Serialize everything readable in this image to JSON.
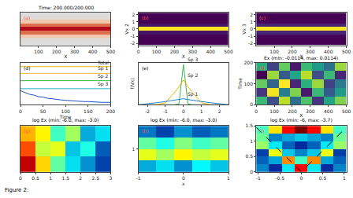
{
  "chart_data": [
    {
      "type": "heatmap",
      "label": "(a)",
      "title": "Time: 200.000/200.000",
      "xlabel": "X",
      "x": [
        50,
        150,
        250,
        350,
        450
      ],
      "y": [
        -2,
        -1.5,
        -1,
        -0.5,
        0,
        0.5,
        1,
        1.5,
        2
      ],
      "z": [
        [
          0,
          0,
          0,
          0,
          0
        ],
        [
          0.02,
          0.02,
          0.02,
          0.02,
          0.02
        ],
        [
          0.15,
          0.15,
          0.15,
          0.15,
          0.15
        ],
        [
          0.6,
          0.6,
          0.6,
          0.6,
          0.6
        ],
        [
          1,
          1,
          1,
          1,
          1
        ],
        [
          0.6,
          0.6,
          0.6,
          0.6,
          0.6
        ],
        [
          0.15,
          0.15,
          0.15,
          0.15,
          0.15
        ],
        [
          0.02,
          0.02,
          0.02,
          0.02,
          0.02
        ],
        [
          0,
          0,
          0,
          0,
          0
        ]
      ],
      "zlim": [
        0,
        1
      ],
      "xlim": [
        0,
        500
      ],
      "ylim": [
        -2.25,
        2.25
      ],
      "xticks": [
        100,
        200,
        300,
        400,
        500
      ],
      "yticks": [],
      "tick_labels": "x"
    },
    {
      "type": "heatmap",
      "label": "(b)",
      "xlabel": "X",
      "ylabel": "Vx 2",
      "x": [
        50,
        150,
        250,
        350,
        450
      ],
      "y": [
        -2,
        -1.5,
        -1,
        -0.5,
        0,
        0.5,
        1,
        1.5,
        2
      ],
      "z": [
        [
          0,
          0,
          0,
          0,
          0
        ],
        [
          0,
          0,
          0,
          0,
          0
        ],
        [
          0,
          0,
          0,
          0,
          0
        ],
        [
          0.05,
          0.05,
          0.05,
          0.05,
          0.05
        ],
        [
          1,
          1,
          1,
          1,
          1
        ],
        [
          0.05,
          0.05,
          0.05,
          0.05,
          0.05
        ],
        [
          0,
          0,
          0,
          0,
          0
        ],
        [
          0,
          0,
          0,
          0,
          0
        ],
        [
          0,
          0,
          0,
          0,
          0
        ]
      ],
      "zlim": [
        0,
        1
      ],
      "xlim": [
        0,
        500
      ],
      "ylim": [
        -2.25,
        2.25
      ],
      "xticks": [
        0,
        100,
        200,
        300,
        400,
        500
      ],
      "yticks": [
        -2,
        -1,
        0,
        1,
        2
      ]
    },
    {
      "type": "heatmap",
      "label": "(c)",
      "xlabel": "X",
      "ylabel": "Vx 3",
      "x": [
        50,
        150,
        250,
        350,
        450
      ],
      "y": [
        -2,
        -1.5,
        -1,
        -0.5,
        0,
        0.5,
        1,
        1.5,
        2
      ],
      "z": [
        [
          0,
          0,
          0,
          0,
          0
        ],
        [
          0,
          0,
          0,
          0,
          0
        ],
        [
          0.01,
          0.01,
          0.01,
          0.01,
          0.01
        ],
        [
          0.1,
          0.1,
          0.1,
          0.1,
          0.1
        ],
        [
          1,
          1,
          1,
          1,
          1
        ],
        [
          0.1,
          0.1,
          0.1,
          0.1,
          0.1
        ],
        [
          0.01,
          0.01,
          0.01,
          0.01,
          0.01
        ],
        [
          0,
          0,
          0,
          0,
          0
        ],
        [
          0,
          0,
          0,
          0,
          0
        ]
      ],
      "zlim": [
        0,
        1
      ],
      "xlim": [
        0,
        500
      ],
      "ylim": [
        -2.25,
        2.25
      ],
      "xticks": [
        100,
        200,
        300,
        400,
        500
      ],
      "yticks": [
        -2,
        -1,
        0,
        1,
        2
      ]
    },
    {
      "type": "line",
      "label": "(d)",
      "xlabel": "Time",
      "x": [
        0,
        10,
        20,
        30,
        40,
        50,
        60,
        70,
        80,
        90,
        100,
        110,
        120,
        130,
        140,
        150,
        160,
        170,
        180,
        190,
        200
      ],
      "series": [
        {
          "name": "Total",
          "color": "#e8b400",
          "values": [
            0.95,
            0.95,
            0.95,
            0.95,
            0.95,
            0.95,
            0.95,
            0.95,
            0.95,
            0.95,
            0.95,
            0.95,
            0.95,
            0.95,
            0.95,
            0.95,
            0.95,
            0.95,
            0.95,
            0.95,
            0.95
          ]
        },
        {
          "name": "Sp 1",
          "color": "#f0c040",
          "values": [
            0.78,
            0.78,
            0.78,
            0.78,
            0.78,
            0.78,
            0.78,
            0.78,
            0.78,
            0.78,
            0.78,
            0.78,
            0.78,
            0.78,
            0.78,
            0.78,
            0.78,
            0.78,
            0.78,
            0.78,
            0.78
          ]
        },
        {
          "name": "Sp 2",
          "color": "#3cb44b",
          "values": [
            0.6,
            0.6,
            0.6,
            0.6,
            0.6,
            0.6,
            0.6,
            0.6,
            0.6,
            0.6,
            0.6,
            0.6,
            0.6,
            0.6,
            0.6,
            0.6,
            0.6,
            0.6,
            0.6,
            0.6,
            0.6
          ]
        },
        {
          "name": "Sp 3",
          "color": "#20b0c0",
          "values": [
            0.4,
            0.4,
            0.4,
            0.4,
            0.4,
            0.4,
            0.4,
            0.4,
            0.4,
            0.4,
            0.4,
            0.4,
            0.4,
            0.4,
            0.4,
            0.4,
            0.4,
            0.4,
            0.4,
            0.4,
            0.4
          ]
        },
        {
          "color": "#2050c0",
          "values": [
            0.35,
            0.3,
            0.26,
            0.24,
            0.2,
            0.19,
            0.16,
            0.15,
            0.13,
            0.12,
            0.11,
            0.1,
            0.09,
            0.09,
            0.08,
            0.08,
            0.07,
            0.07,
            0.06,
            0.06,
            0.06
          ]
        }
      ],
      "xlim": [
        0,
        200
      ],
      "ylim": [
        0,
        1.05
      ],
      "xticks": [
        0,
        50,
        100,
        150,
        200
      ],
      "yticks": [],
      "tick_labels": "x"
    },
    {
      "type": "line",
      "label": "(e)",
      "ylabel": "f(Vx)",
      "x": [
        -2.5,
        -2,
        -1.5,
        -1,
        -0.5,
        -0.25,
        0,
        0.25,
        0.5,
        1,
        1.5,
        2,
        2.5
      ],
      "series": [
        {
          "name": "Sp 3",
          "color": "#3cb44b",
          "values": [
            0,
            0,
            0,
            0,
            0,
            0.02,
            1,
            0.02,
            0,
            0,
            0,
            0,
            0
          ]
        },
        {
          "name": "Sp 2",
          "color": "#f0b400",
          "values": [
            0,
            0,
            0,
            0.05,
            0.3,
            0.45,
            0.62,
            0.45,
            0.3,
            0.05,
            0,
            0,
            0
          ]
        },
        {
          "name": "Sp 1",
          "color": "#2080d0",
          "values": [
            0,
            0.02,
            0.05,
            0.08,
            0.11,
            0.13,
            0.15,
            0.13,
            0.11,
            0.08,
            0.05,
            0.02,
            0
          ]
        }
      ],
      "xlim": [
        -2.5,
        2.5
      ],
      "ylim": [
        0,
        1.05
      ],
      "xticks": [
        -2,
        -1,
        0,
        1,
        2
      ],
      "yticks": [],
      "tick_labels": "x"
    },
    {
      "type": "heatmap",
      "label": "(f)",
      "title": "Ex (min: -0.0114, max: 0.0114)",
      "xlabel": "X",
      "ylabel": "Time",
      "x": [
        31.25,
        93.75,
        156.25,
        218.75,
        281.25,
        343.75,
        406.25,
        468.75
      ],
      "y": [
        20,
        60,
        100,
        140,
        180
      ],
      "z": [
        [
          0.004,
          -0.006,
          0.009,
          -0.003,
          0.005,
          -0.008,
          0.002,
          0.007
        ],
        [
          -0.008,
          0.011,
          -0.002,
          0.007,
          -0.01,
          0.004,
          -0.005,
          0.001
        ],
        [
          0.006,
          -0.004,
          0.0114,
          -0.009,
          0.003,
          0.008,
          -0.007,
          -0.002
        ],
        [
          -0.0114,
          0.008,
          -0.005,
          0.002,
          0.009,
          -0.006,
          0.004,
          -0.009
        ],
        [
          0.003,
          -0.007,
          0.006,
          -0.01,
          0.004,
          0.001,
          -0.003,
          0.008
        ]
      ],
      "zlim": [
        -0.0114,
        0.0114
      ],
      "xlim": [
        0,
        500
      ],
      "ylim": [
        0,
        200
      ],
      "xticks": [
        0,
        100,
        200,
        300,
        400,
        500
      ],
      "yticks": [
        0,
        100,
        200
      ]
    },
    {
      "type": "heatmap",
      "label": "(g)",
      "title": "log Ex (min: -6.0, max: -3.0)",
      "x": [
        0.25,
        0.75,
        1.25,
        1.75,
        2.25,
        2.75
      ],
      "y": [
        0.25,
        0.75,
        1.25
      ],
      "z": [
        [
          -3.2,
          -4.0,
          -4.6,
          -5.0,
          -5.3,
          -5.6
        ],
        [
          -3.6,
          -4.3,
          -4.2,
          -5.1,
          -4.8,
          -5.5
        ],
        [
          -3.9,
          -4.1,
          -4.7,
          -4.4,
          -5.2,
          -5.0
        ]
      ],
      "zlim": [
        -6,
        -3
      ],
      "xlim": [
        0,
        3
      ],
      "ylim": [
        0,
        1.5
      ],
      "xticks": [
        0,
        0.5,
        1,
        1.5,
        2,
        2.5,
        3
      ],
      "yticks": [],
      "tick_labels": "x"
    },
    {
      "type": "heatmap",
      "label": "(h)",
      "title": "log Ex (min: -6.0, max: -3.0)",
      "xlabel": "x",
      "x": [
        -0.8,
        -0.4,
        0,
        0.4,
        0.8
      ],
      "y": [
        0.25,
        0.75,
        1.25,
        1.75
      ],
      "z": [
        [
          -5.2,
          -5.0,
          -5.3,
          -4.9,
          -5.1
        ],
        [
          -4.2,
          -4.4,
          -4.1,
          -4.3,
          -4.2
        ],
        [
          -4.6,
          -4.8,
          -4.5,
          -4.7,
          -4.6
        ],
        [
          -5.4,
          -5.6,
          -5.3,
          -5.5,
          -5.4
        ]
      ],
      "zlim": [
        -6,
        -3
      ],
      "xlim": [
        -1,
        1
      ],
      "ylim": [
        0,
        2
      ],
      "xticks": [
        -1,
        0,
        1
      ],
      "yticks": [
        1
      ]
    },
    {
      "type": "heatmap",
      "label": "(i)",
      "title": "log Ex (min: -6, max: -3.7)",
      "x": [
        -0.9,
        -0.6,
        -0.3,
        0,
        0.3,
        0.6,
        0.9
      ],
      "y": [
        0.125,
        0.375,
        0.625,
        0.875,
        1.125,
        1.375
      ],
      "z": [
        [
          -5.5,
          -5.8,
          -5.2,
          -4.0,
          -5.2,
          -5.8,
          -5.5
        ],
        [
          -5.6,
          -5.4,
          -4.3,
          -5.0,
          -4.3,
          -5.4,
          -5.6
        ],
        [
          -5.7,
          -4.6,
          -5.3,
          -5.5,
          -5.3,
          -4.6,
          -5.7
        ],
        [
          -4.8,
          -5.2,
          -5.6,
          -5.8,
          -5.6,
          -5.2,
          -4.8
        ],
        [
          -4.9,
          -5.5,
          -5.4,
          -5.3,
          -5.4,
          -5.5,
          -4.9
        ],
        [
          -5.0,
          -4.5,
          -4.0,
          -3.7,
          -4.0,
          -4.5,
          -5.0
        ]
      ],
      "zlim": [
        -6,
        -3.7
      ],
      "xlim": [
        -1.05,
        1.05
      ],
      "ylim": [
        0,
        1.5
      ],
      "xticks": [
        -1,
        -0.5,
        0,
        0.5,
        1
      ],
      "yticks": [
        0,
        0.5,
        1,
        1.5
      ],
      "dashed_line": {
        "x": [
          -1.05,
          0,
          1.05
        ],
        "y": [
          1.45,
          0,
          1.45
        ],
        "color": "#000000",
        "line_style": "dash"
      }
    },
    {
      "type": "caption",
      "title": "Figure 2:"
    }
  ]
}
